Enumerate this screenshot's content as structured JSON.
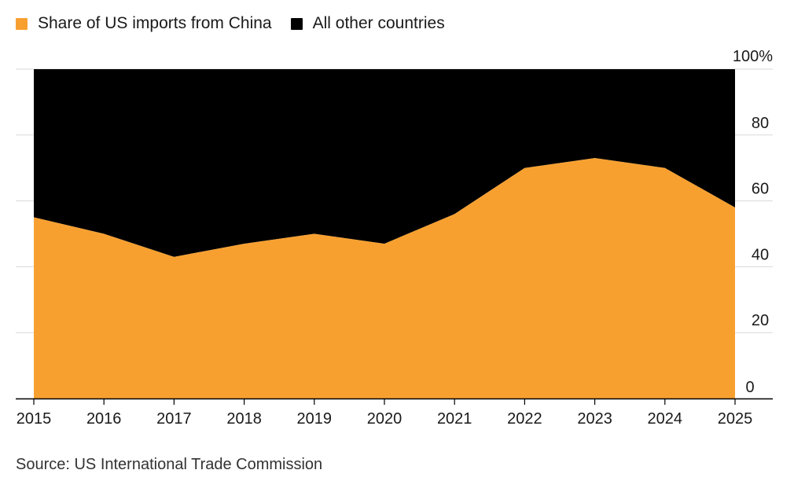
{
  "chart_data": {
    "type": "area",
    "title": "",
    "xlabel": "",
    "ylabel": "",
    "x": [
      2015,
      2016,
      2017,
      2018,
      2019,
      2020,
      2021,
      2022,
      2023,
      2024,
      2025
    ],
    "categories": [
      "2015",
      "2016",
      "2017",
      "2018",
      "2019",
      "2020",
      "2021",
      "2022",
      "2023",
      "2024",
      "2025"
    ],
    "series": [
      {
        "name": "Share of US imports from China",
        "values": [
          55,
          50,
          43,
          47,
          50,
          47,
          56,
          70,
          73,
          70,
          58
        ],
        "color": "#F7A030"
      },
      {
        "name": "All other countries",
        "values": [
          45,
          50,
          57,
          53,
          50,
          53,
          44,
          30,
          27,
          30,
          42
        ],
        "color": "#000000"
      }
    ],
    "stacked": true,
    "ylim": [
      0,
      100
    ],
    "yticks": [
      0,
      20,
      40,
      60,
      80,
      100
    ],
    "ytick_labels": [
      "0",
      "20",
      "40",
      "60",
      "80",
      "100%"
    ],
    "yaxis_position": "right",
    "grid": true,
    "legend": "top-left"
  },
  "legend": {
    "items": [
      {
        "label": "Share of US imports from China",
        "color": "#F7A030"
      },
      {
        "label": "All other countries",
        "color": "#000000"
      }
    ]
  },
  "source": "Source: US International Trade Commission"
}
